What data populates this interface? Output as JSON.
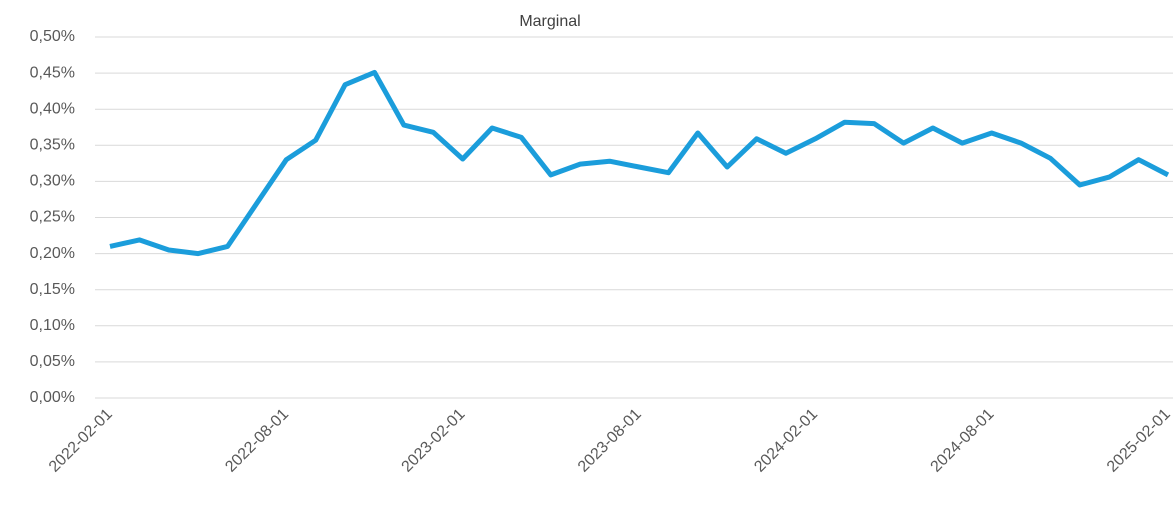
{
  "chart_data": {
    "type": "line",
    "title": "Marginal",
    "categories": [
      "2022-02-01",
      null,
      null,
      null,
      null,
      null,
      "2022-08-01",
      null,
      null,
      null,
      null,
      null,
      "2023-02-01",
      null,
      null,
      null,
      null,
      null,
      "2023-08-01",
      null,
      null,
      null,
      null,
      null,
      "2024-02-01",
      null,
      null,
      null,
      null,
      null,
      "2024-08-01",
      null,
      null,
      null,
      null,
      null,
      "2025-02-01"
    ],
    "series": [
      {
        "name": "Marginal",
        "color": "#1b9ddb",
        "values": [
          0.21,
          0.219,
          0.205,
          0.2,
          0.21,
          0.27,
          0.33,
          0.357,
          0.434,
          0.451,
          0.378,
          0.368,
          0.331,
          0.374,
          0.361,
          0.309,
          0.324,
          0.328,
          0.32,
          0.312,
          0.367,
          0.32,
          0.359,
          0.339,
          0.359,
          0.382,
          0.38,
          0.353,
          0.374,
          0.353,
          0.367,
          0.353,
          0.332,
          0.295,
          0.306,
          0.33,
          0.309
        ]
      }
    ],
    "ylim": [
      0,
      0.5
    ],
    "yticks": [
      {
        "value": 0,
        "label": "0,00%"
      },
      {
        "value": 0.05,
        "label": "0,05%"
      },
      {
        "value": 0.1,
        "label": "0,10%"
      },
      {
        "value": 0.15,
        "label": "0,15%"
      },
      {
        "value": 0.2,
        "label": "0,20%"
      },
      {
        "value": 0.25,
        "label": "0,25%"
      },
      {
        "value": 0.3,
        "label": "0,30%"
      },
      {
        "value": 0.35,
        "label": "0,35%"
      },
      {
        "value": 0.4,
        "label": "0,40%"
      },
      {
        "value": 0.45,
        "label": "0,45%"
      },
      {
        "value": 0.5,
        "label": "0,50%"
      }
    ],
    "grid": true
  }
}
